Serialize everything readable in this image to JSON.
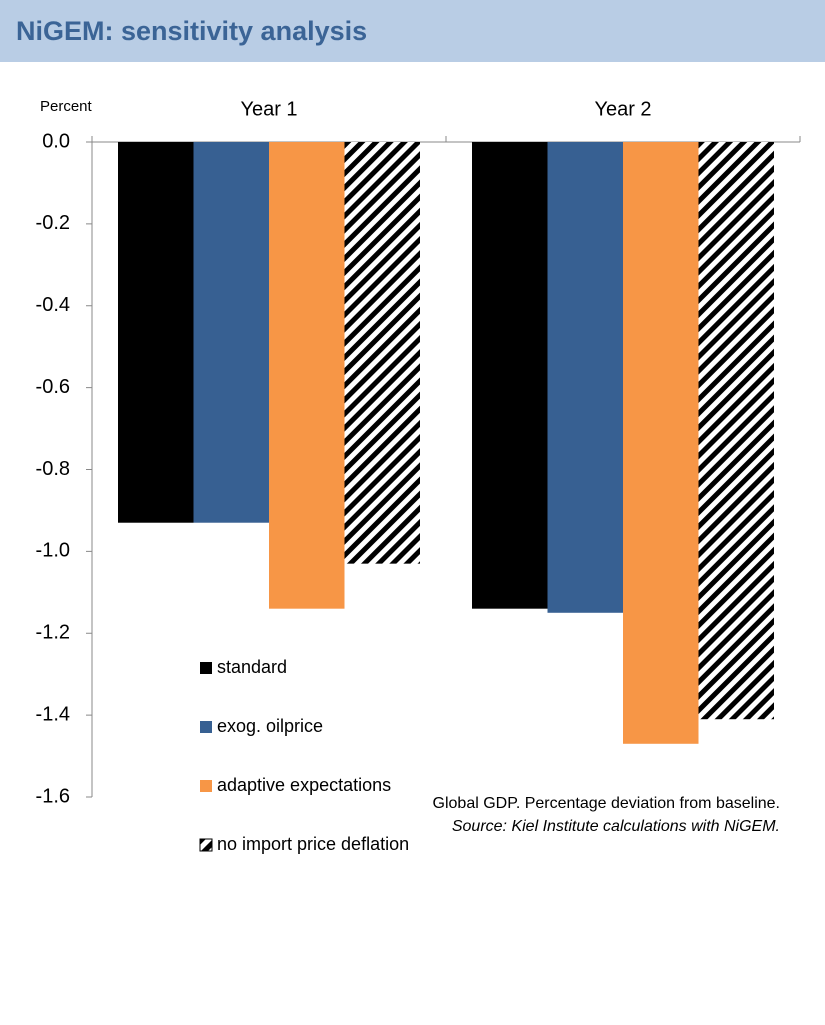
{
  "chart_data": {
    "type": "bar",
    "title": "NiGEM: sensitivity analysis",
    "y_label": "Percent",
    "categories": [
      "Year 1",
      "Year 2"
    ],
    "series": [
      {
        "name": "standard",
        "color": "#000000",
        "values": [
          -0.93,
          -1.14
        ]
      },
      {
        "name": "exog. oilprice",
        "color": "#376092",
        "values": [
          -0.93,
          -1.15
        ]
      },
      {
        "name": "adaptive expectations",
        "color": "#f79646",
        "values": [
          -1.14,
          -1.47
        ]
      },
      {
        "name": "no import price deflation",
        "color": "#000000",
        "pattern": "hatch",
        "values": [
          -1.03,
          -1.41
        ]
      }
    ],
    "ylim": [
      -1.6,
      0
    ],
    "yticks": [
      {
        "value": 0,
        "label": "0.0"
      },
      -0.2,
      -0.4,
      -0.6,
      -0.8,
      {
        "value": -1,
        "label": "-1.0"
      },
      -1.2,
      -1.4,
      -1.6
    ],
    "grid": false,
    "legend": "lower left",
    "note": "Global GDP.  Percentage deviation from baseline.",
    "source": "Source: Kiel Institute calculations with NiGEM."
  }
}
